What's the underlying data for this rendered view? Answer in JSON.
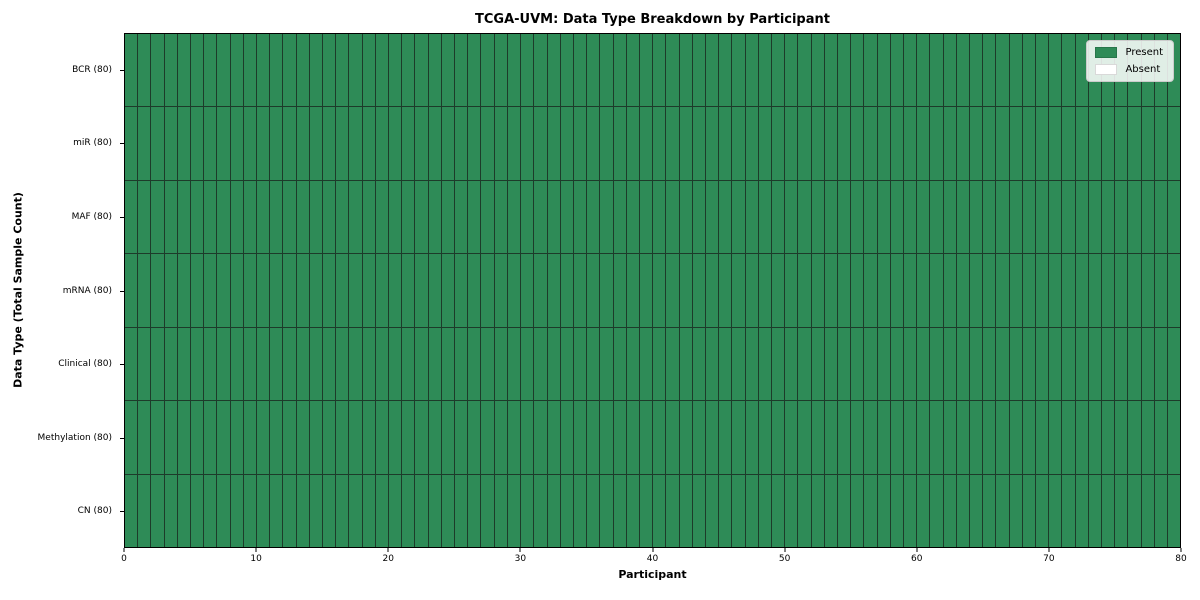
{
  "title": "TCGA-UVM: Data Type Breakdown by Participant",
  "xlabel": "Participant",
  "ylabel": "Data Type (Total Sample Count)",
  "legend": {
    "present_label": "Present",
    "absent_label": "Absent",
    "position": "upper right"
  },
  "colors": {
    "present": "#2e8b57",
    "absent": "#ffffff",
    "cell_border": "#1d3b2a",
    "spine": "#000000",
    "legend_border": "#cccccc",
    "legend_bg": "rgba(255,255,255,0.85)",
    "background": "#ffffff",
    "text": "#000000"
  },
  "chart_data": {
    "type": "heatmap",
    "title": "TCGA-UVM: Data Type Breakdown by Participant",
    "xlabel": "Participant",
    "ylabel": "Data Type (Total Sample Count)",
    "x_range": [
      0,
      80
    ],
    "x_ticks": [
      0,
      10,
      20,
      30,
      40,
      50,
      60,
      70,
      80
    ],
    "participants": 80,
    "grid": "cell-borders",
    "legend_entries": [
      "Present",
      "Absent"
    ],
    "legend_position": "upper right",
    "value_legend": {
      "1": "Present",
      "0": "Absent"
    },
    "all_cells_value": 1,
    "rows": [
      {
        "label": "BCR (80)",
        "data_type": "BCR",
        "total_samples": 80,
        "present": 80,
        "absent": 0
      },
      {
        "label": "miR (80)",
        "data_type": "miR",
        "total_samples": 80,
        "present": 80,
        "absent": 0
      },
      {
        "label": "MAF (80)",
        "data_type": "MAF",
        "total_samples": 80,
        "present": 80,
        "absent": 0
      },
      {
        "label": "mRNA (80)",
        "data_type": "mRNA",
        "total_samples": 80,
        "present": 80,
        "absent": 0
      },
      {
        "label": "Clinical (80)",
        "data_type": "Clinical",
        "total_samples": 80,
        "present": 80,
        "absent": 0
      },
      {
        "label": "Methylation (80)",
        "data_type": "Methylation",
        "total_samples": 80,
        "present": 80,
        "absent": 0
      },
      {
        "label": "CN (80)",
        "data_type": "CN",
        "total_samples": 80,
        "present": 80,
        "absent": 0
      }
    ]
  }
}
